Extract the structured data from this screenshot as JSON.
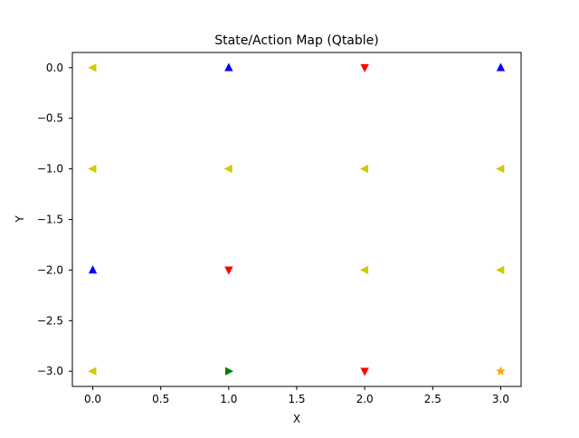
{
  "chart_data": {
    "type": "scatter",
    "title": "State/Action Map (Qtable)",
    "xlabel": "X",
    "ylabel": "Y",
    "xlim": [
      -0.15,
      3.15
    ],
    "ylim": [
      -3.15,
      0.15
    ],
    "xticks": [
      0.0,
      0.5,
      1.0,
      1.5,
      2.0,
      2.5,
      3.0
    ],
    "xtick_labels": [
      "0.0",
      "0.5",
      "1.0",
      "1.5",
      "2.0",
      "2.5",
      "3.0"
    ],
    "yticks": [
      0.0,
      -0.5,
      -1.0,
      -1.5,
      -2.0,
      -2.5,
      -3.0
    ],
    "ytick_labels": [
      "0.0",
      "−0.5",
      "−1.0",
      "−1.5",
      "−2.0",
      "−2.5",
      "−3.0"
    ],
    "grid": false,
    "legend": "none",
    "marker_styles": {
      "left": {
        "color": "#cccc00",
        "shape": "triangle-left"
      },
      "up": {
        "color": "#0000ff",
        "shape": "triangle-up"
      },
      "down": {
        "color": "#ff0000",
        "shape": "triangle-down"
      },
      "right": {
        "color": "#008000",
        "shape": "triangle-right"
      },
      "star": {
        "color": "#ffa500",
        "shape": "star"
      }
    },
    "points": [
      {
        "x": 0,
        "y": 0,
        "marker": "left"
      },
      {
        "x": 1,
        "y": 0,
        "marker": "up"
      },
      {
        "x": 2,
        "y": 0,
        "marker": "down"
      },
      {
        "x": 3,
        "y": 0,
        "marker": "up"
      },
      {
        "x": 0,
        "y": -1,
        "marker": "left"
      },
      {
        "x": 1,
        "y": -1,
        "marker": "left"
      },
      {
        "x": 2,
        "y": -1,
        "marker": "left"
      },
      {
        "x": 3,
        "y": -1,
        "marker": "left"
      },
      {
        "x": 0,
        "y": -2,
        "marker": "up"
      },
      {
        "x": 1,
        "y": -2,
        "marker": "down"
      },
      {
        "x": 2,
        "y": -2,
        "marker": "left"
      },
      {
        "x": 3,
        "y": -2,
        "marker": "left"
      },
      {
        "x": 0,
        "y": -3,
        "marker": "left"
      },
      {
        "x": 1,
        "y": -3,
        "marker": "right"
      },
      {
        "x": 2,
        "y": -3,
        "marker": "down"
      },
      {
        "x": 3,
        "y": -3,
        "marker": "star"
      }
    ]
  }
}
